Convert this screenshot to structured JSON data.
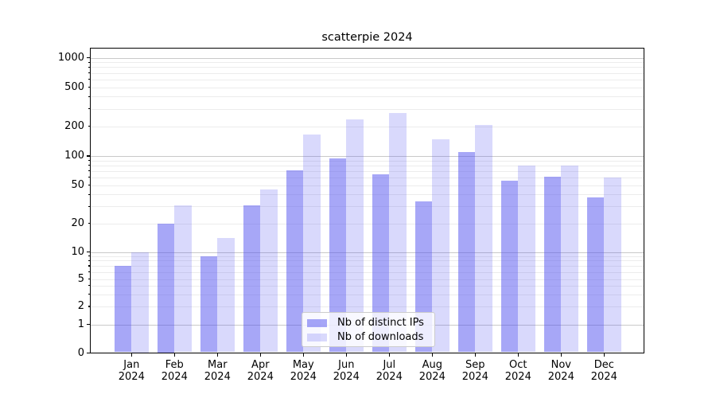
{
  "chart_data": {
    "type": "bar",
    "title": "scatterpie 2024",
    "categories": [
      "Jan",
      "Feb",
      "Mar",
      "Apr",
      "May",
      "Jun",
      "Jul",
      "Aug",
      "Sep",
      "Oct",
      "Nov",
      "Dec"
    ],
    "year_label": "2024",
    "series": [
      {
        "name": "Nb of distinct IPs",
        "color": "rgba(80,80,240,0.5)",
        "values": [
          7,
          20,
          9,
          31,
          71,
          95,
          65,
          34,
          110,
          55,
          61,
          37
        ]
      },
      {
        "name": "Nb of downloads",
        "color": "rgba(80,80,240,0.22)",
        "values": [
          10,
          31,
          14,
          45,
          165,
          235,
          270,
          148,
          204,
          80,
          80,
          60
        ]
      }
    ],
    "y_ticks": [
      0,
      1,
      2,
      5,
      10,
      20,
      50,
      100,
      200,
      500,
      1000
    ],
    "y_scale": "symlog",
    "ylim": [
      0,
      1270
    ],
    "grid": "horizontal",
    "legend_position": "lower center"
  }
}
